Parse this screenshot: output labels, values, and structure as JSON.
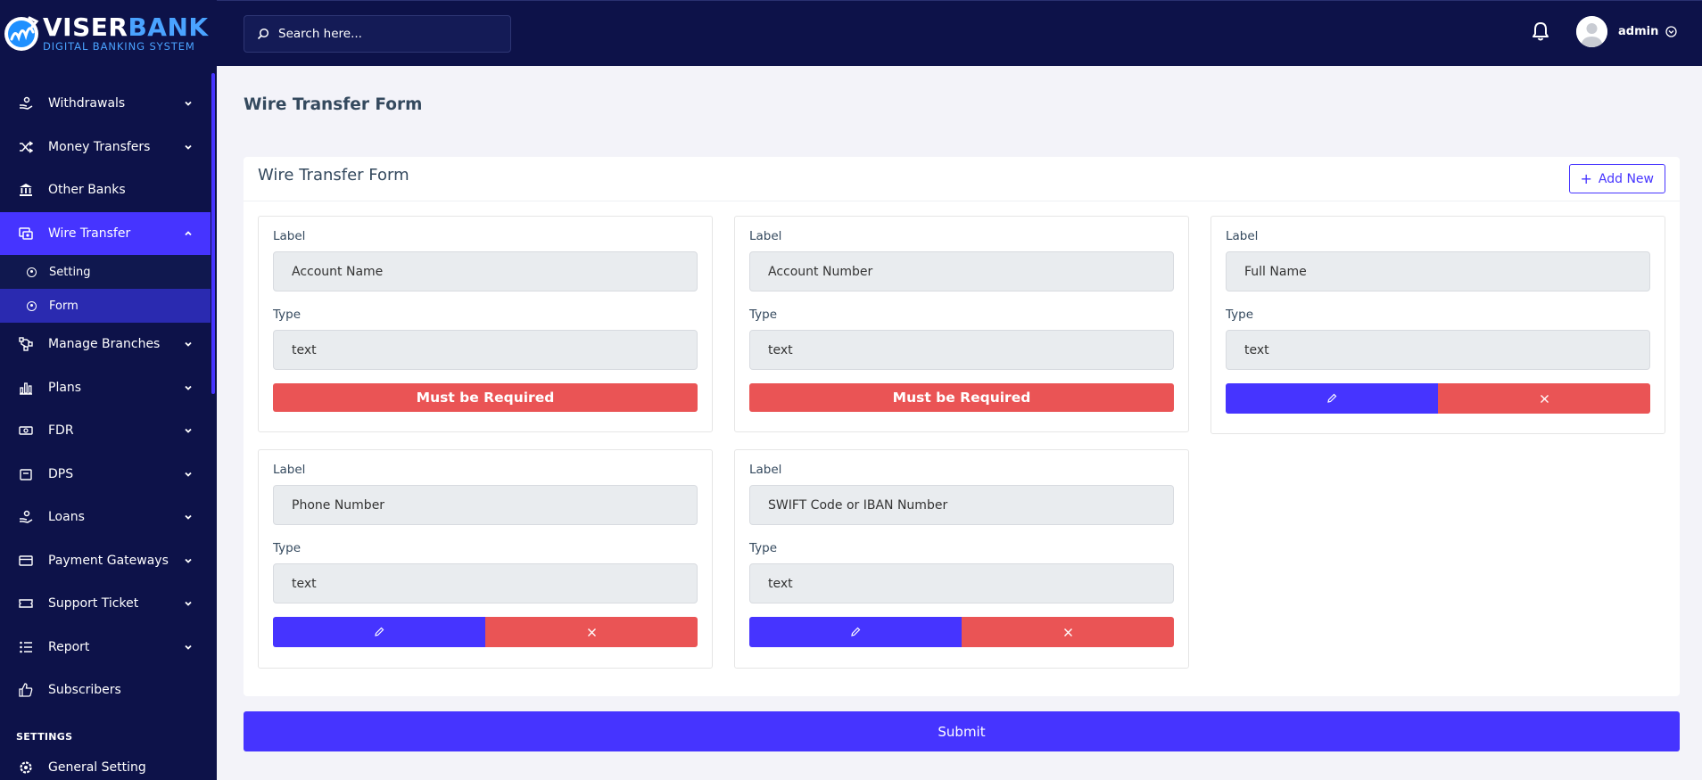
{
  "brand": {
    "name_part1": "VISER",
    "name_part2": "BANK",
    "tagline": "DIGITAL BANKING SYSTEM"
  },
  "search": {
    "placeholder": "Search here..."
  },
  "user": {
    "name": "admin"
  },
  "sidebar": {
    "items": [
      {
        "label": "Withdrawals",
        "icon": "hand-coin-icon",
        "has_children": true
      },
      {
        "label": "Money Transfers",
        "icon": "shuffle-icon",
        "has_children": true
      },
      {
        "label": "Other Banks",
        "icon": "bank-icon",
        "has_children": false
      },
      {
        "label": "Wire Transfer",
        "icon": "wire-transfer-icon",
        "has_children": true,
        "active": true,
        "children": [
          {
            "label": "Setting"
          },
          {
            "label": "Form",
            "active": true
          }
        ]
      },
      {
        "label": "Manage Branches",
        "icon": "branches-icon",
        "has_children": true
      },
      {
        "label": "Plans",
        "icon": "bar-chart-icon",
        "has_children": true
      },
      {
        "label": "FDR",
        "icon": "money-icon",
        "has_children": true
      },
      {
        "label": "DPS",
        "icon": "wallet-icon",
        "has_children": true
      },
      {
        "label": "Loans",
        "icon": "hand-coin-icon",
        "has_children": true
      },
      {
        "label": "Payment Gateways",
        "icon": "credit-card-icon",
        "has_children": true
      },
      {
        "label": "Support Ticket",
        "icon": "ticket-icon",
        "has_children": true
      },
      {
        "label": "Report",
        "icon": "list-icon",
        "has_children": true
      },
      {
        "label": "Subscribers",
        "icon": "thumbs-up-icon",
        "has_children": false
      }
    ],
    "section_title": "SETTINGS",
    "settings_items": [
      {
        "label": "General Setting",
        "icon": "gear-icon"
      }
    ]
  },
  "page": {
    "title": "Wire Transfer Form"
  },
  "card": {
    "title": "Wire Transfer Form",
    "add_label": "Add New"
  },
  "fields_common": {
    "label_caption": "Label",
    "type_caption": "Type",
    "required_text": "Must be Required"
  },
  "fields": [
    {
      "label": "Account Name",
      "type": "text",
      "required": true
    },
    {
      "label": "Account Number",
      "type": "text",
      "required": true
    },
    {
      "label": "Full Name",
      "type": "text",
      "required": false
    },
    {
      "label": "Phone Number",
      "type": "text",
      "required": false
    },
    {
      "label": "SWIFT Code or IBAN Number",
      "type": "text",
      "required": false
    }
  ],
  "submit_label": "Submit",
  "colors": {
    "sidebar_bg": "#0d1249",
    "primary": "#4634ff",
    "danger": "#ea5455",
    "page_bg": "#f3f3f9"
  }
}
